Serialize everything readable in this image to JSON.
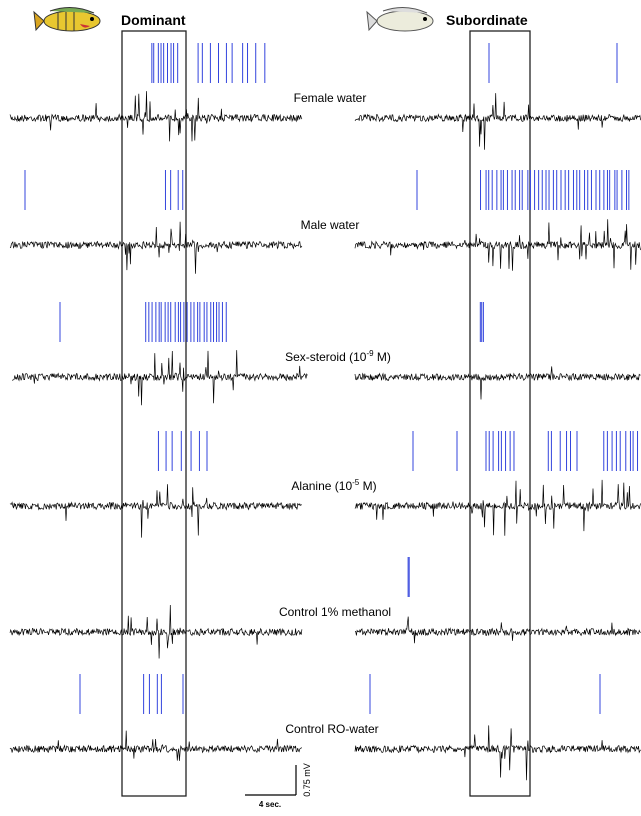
{
  "headers": {
    "left": "Dominant",
    "right": "Subordinate"
  },
  "rows": [
    {
      "label": "Female water"
    },
    {
      "label": "Male water"
    },
    {
      "label": "Sex-steroid (10",
      "sup": "-9",
      "tail": " M)"
    },
    {
      "label": "Alanine (10",
      "sup": "-5",
      "tail": " M)"
    },
    {
      "label": "Control 1% methanol"
    },
    {
      "label": "Control RO-water"
    }
  ],
  "scale_bar": {
    "vertical": "0.75 mV",
    "horizontal": "4 sec."
  }
}
